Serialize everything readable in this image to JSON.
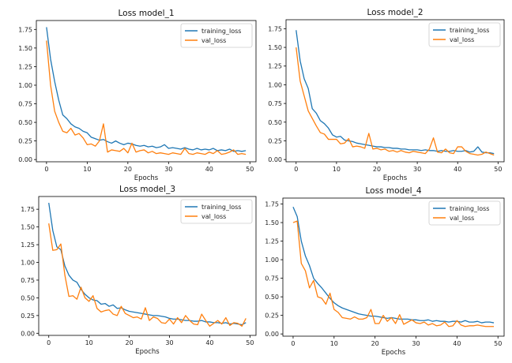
{
  "colors": {
    "training": "#1f77b4",
    "validation": "#ff7f0e"
  },
  "chart_data": [
    {
      "type": "line",
      "title": "Loss   model_1",
      "xlabel": "Epochs",
      "ylabel": "",
      "xlim": [
        -2.5,
        51.5
      ],
      "ylim": [
        -0.03,
        1.87
      ],
      "xticks": [
        0,
        10,
        20,
        30,
        40,
        50
      ],
      "yticks": [
        0.0,
        0.25,
        0.5,
        0.75,
        1.0,
        1.25,
        1.5,
        1.75
      ],
      "ytick_labels": [
        "0.00",
        "0.25",
        "0.50",
        "0.75",
        "1.00",
        "1.25",
        "1.50",
        "1.75"
      ],
      "legend_position": "top-right",
      "series": [
        {
          "name": "training_loss",
          "color": "#1f77b4",
          "values": [
            1.78,
            1.35,
            1.05,
            0.8,
            0.6,
            0.55,
            0.48,
            0.44,
            0.42,
            0.38,
            0.36,
            0.3,
            0.28,
            0.26,
            0.27,
            0.24,
            0.22,
            0.25,
            0.22,
            0.2,
            0.22,
            0.21,
            0.19,
            0.18,
            0.19,
            0.17,
            0.18,
            0.16,
            0.17,
            0.2,
            0.15,
            0.16,
            0.15,
            0.14,
            0.16,
            0.14,
            0.13,
            0.15,
            0.13,
            0.14,
            0.13,
            0.15,
            0.12,
            0.13,
            0.12,
            0.14,
            0.11,
            0.12,
            0.11,
            0.12
          ]
        },
        {
          "name": "val_loss",
          "color": "#ff7f0e",
          "values": [
            1.6,
            1.0,
            0.65,
            0.5,
            0.38,
            0.36,
            0.42,
            0.33,
            0.35,
            0.29,
            0.2,
            0.21,
            0.18,
            0.25,
            0.48,
            0.1,
            0.13,
            0.12,
            0.11,
            0.15,
            0.09,
            0.22,
            0.1,
            0.12,
            0.13,
            0.09,
            0.11,
            0.08,
            0.09,
            0.08,
            0.07,
            0.09,
            0.08,
            0.07,
            0.15,
            0.08,
            0.07,
            0.09,
            0.08,
            0.07,
            0.1,
            0.08,
            0.12,
            0.07,
            0.08,
            0.1,
            0.13,
            0.07,
            0.08,
            0.07
          ]
        }
      ]
    },
    {
      "type": "line",
      "title": "Loss   model_2",
      "xlabel": "Epochs",
      "ylabel": "",
      "xlim": [
        -2.5,
        51.5
      ],
      "ylim": [
        -0.03,
        1.87
      ],
      "xticks": [
        0,
        10,
        20,
        30,
        40,
        50
      ],
      "yticks": [
        0.0,
        0.25,
        0.5,
        0.75,
        1.0,
        1.25,
        1.5,
        1.75
      ],
      "ytick_labels": [
        "0.00",
        "0.25",
        "0.50",
        "0.75",
        "1.00",
        "1.25",
        "1.50",
        "1.75"
      ],
      "legend_position": "top-right",
      "series": [
        {
          "name": "training_loss",
          "color": "#1f77b4",
          "values": [
            1.73,
            1.32,
            1.08,
            0.95,
            0.68,
            0.62,
            0.52,
            0.48,
            0.42,
            0.33,
            0.3,
            0.31,
            0.26,
            0.25,
            0.24,
            0.22,
            0.21,
            0.2,
            0.19,
            0.18,
            0.17,
            0.17,
            0.16,
            0.16,
            0.15,
            0.15,
            0.14,
            0.14,
            0.13,
            0.13,
            0.13,
            0.12,
            0.13,
            0.12,
            0.12,
            0.11,
            0.12,
            0.11,
            0.11,
            0.12,
            0.11,
            0.11,
            0.12,
            0.1,
            0.11,
            0.17,
            0.1,
            0.09,
            0.09,
            0.08
          ]
        },
        {
          "name": "val_loss",
          "color": "#ff7f0e",
          "values": [
            1.5,
            1.05,
            0.85,
            0.65,
            0.55,
            0.45,
            0.36,
            0.34,
            0.27,
            0.27,
            0.27,
            0.21,
            0.22,
            0.28,
            0.17,
            0.18,
            0.17,
            0.15,
            0.35,
            0.14,
            0.15,
            0.13,
            0.14,
            0.11,
            0.12,
            0.1,
            0.12,
            0.1,
            0.09,
            0.11,
            0.1,
            0.09,
            0.08,
            0.14,
            0.29,
            0.1,
            0.09,
            0.14,
            0.09,
            0.08,
            0.17,
            0.17,
            0.11,
            0.08,
            0.07,
            0.06,
            0.07,
            0.1,
            0.08,
            0.06
          ]
        }
      ]
    },
    {
      "type": "line",
      "title": "Loss   model_3",
      "xlabel": "Epochs",
      "ylabel": "",
      "xlim": [
        -2.5,
        51.5
      ],
      "ylim": [
        -0.03,
        1.93
      ],
      "xticks": [
        0,
        10,
        20,
        30,
        40,
        50
      ],
      "yticks": [
        0.0,
        0.25,
        0.5,
        0.75,
        1.0,
        1.25,
        1.5,
        1.75
      ],
      "ytick_labels": [
        "0.00",
        "0.25",
        "0.50",
        "0.75",
        "1.00",
        "1.25",
        "1.50",
        "1.75"
      ],
      "legend_position": "top-right",
      "series": [
        {
          "name": "training_loss",
          "color": "#1f77b4",
          "values": [
            1.84,
            1.45,
            1.22,
            1.18,
            0.95,
            0.82,
            0.75,
            0.72,
            0.62,
            0.55,
            0.5,
            0.47,
            0.46,
            0.41,
            0.42,
            0.38,
            0.4,
            0.35,
            0.36,
            0.33,
            0.31,
            0.3,
            0.29,
            0.28,
            0.27,
            0.26,
            0.25,
            0.25,
            0.24,
            0.23,
            0.21,
            0.2,
            0.2,
            0.19,
            0.18,
            0.18,
            0.17,
            0.17,
            0.18,
            0.16,
            0.16,
            0.15,
            0.15,
            0.14,
            0.15,
            0.13,
            0.14,
            0.13,
            0.12,
            0.15
          ]
        },
        {
          "name": "val_loss",
          "color": "#ff7f0e",
          "values": [
            1.55,
            1.17,
            1.18,
            1.26,
            0.82,
            0.52,
            0.53,
            0.48,
            0.65,
            0.5,
            0.45,
            0.53,
            0.35,
            0.3,
            0.32,
            0.33,
            0.27,
            0.25,
            0.38,
            0.28,
            0.25,
            0.22,
            0.23,
            0.2,
            0.36,
            0.18,
            0.23,
            0.21,
            0.15,
            0.14,
            0.2,
            0.13,
            0.22,
            0.15,
            0.25,
            0.18,
            0.13,
            0.12,
            0.27,
            0.18,
            0.1,
            0.14,
            0.18,
            0.13,
            0.22,
            0.11,
            0.15,
            0.14,
            0.1,
            0.21
          ]
        }
      ]
    },
    {
      "type": "line",
      "title": "Loss  model_4",
      "xlabel": "Epochs",
      "ylabel": "",
      "xlim": [
        -2.5,
        51.5
      ],
      "ylim": [
        -0.03,
        1.83
      ],
      "xticks": [
        0,
        10,
        20,
        30,
        40,
        50
      ],
      "yticks": [
        0.0,
        0.25,
        0.5,
        0.75,
        1.0,
        1.25,
        1.5,
        1.75
      ],
      "ytick_labels": [
        "0.00",
        "0.25",
        "0.50",
        "0.75",
        "1.00",
        "1.25",
        "1.50",
        "1.75"
      ],
      "legend_position": "top-right",
      "series": [
        {
          "name": "training_loss",
          "color": "#1f77b4",
          "values": [
            1.71,
            1.58,
            1.25,
            1.05,
            0.92,
            0.75,
            0.68,
            0.62,
            0.55,
            0.48,
            0.42,
            0.38,
            0.35,
            0.33,
            0.31,
            0.29,
            0.27,
            0.26,
            0.25,
            0.24,
            0.24,
            0.23,
            0.22,
            0.21,
            0.22,
            0.21,
            0.2,
            0.2,
            0.2,
            0.19,
            0.19,
            0.18,
            0.18,
            0.19,
            0.17,
            0.18,
            0.17,
            0.17,
            0.16,
            0.17,
            0.17,
            0.16,
            0.18,
            0.16,
            0.16,
            0.17,
            0.15,
            0.16,
            0.16,
            0.15
          ]
        },
        {
          "name": "val_loss",
          "color": "#ff7f0e",
          "values": [
            1.5,
            1.52,
            0.95,
            0.85,
            0.62,
            0.72,
            0.5,
            0.48,
            0.4,
            0.55,
            0.33,
            0.29,
            0.22,
            0.21,
            0.2,
            0.23,
            0.2,
            0.2,
            0.22,
            0.33,
            0.14,
            0.14,
            0.25,
            0.17,
            0.22,
            0.14,
            0.26,
            0.13,
            0.16,
            0.19,
            0.15,
            0.14,
            0.16,
            0.12,
            0.14,
            0.11,
            0.12,
            0.16,
            0.1,
            0.11,
            0.18,
            0.12,
            0.1,
            0.11,
            0.11,
            0.12,
            0.11,
            0.1,
            0.1,
            0.1
          ]
        }
      ]
    }
  ]
}
